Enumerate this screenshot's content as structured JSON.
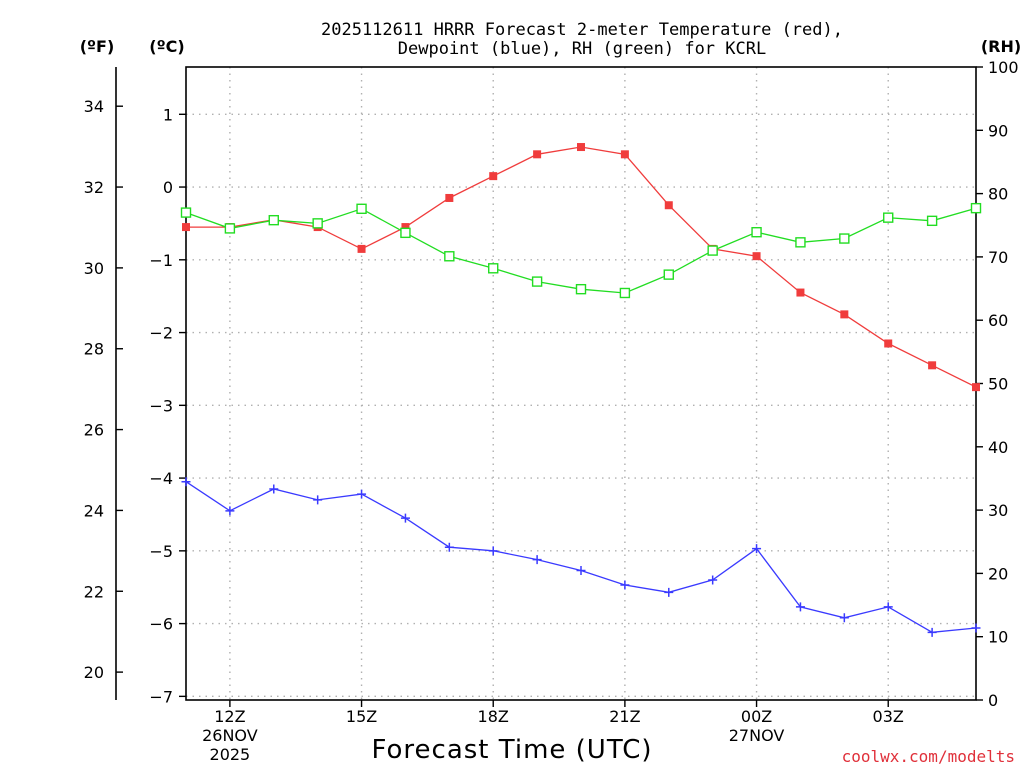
{
  "chart_data": {
    "type": "line",
    "title_line1": "2025112611 HRRR Forecast 2-meter Temperature (red),",
    "title_line2": "Dewpoint (blue), RH (green) for KCRL",
    "xlabel": "Forecast Time (UTC)",
    "credit": "coolwx.com/modelts",
    "units": {
      "fahrenheit": "(ºF)",
      "celsius": "(ºC)",
      "rh": "(RH)"
    },
    "x_hours": [
      11,
      12,
      13,
      14,
      15,
      16,
      17,
      18,
      19,
      20,
      21,
      22,
      23,
      24,
      25,
      26,
      27,
      28,
      29
    ],
    "xlim": [
      11,
      29
    ],
    "x_ticks": [
      {
        "hour": 12,
        "line1": "12Z",
        "line2": "26NOV",
        "line3": "2025"
      },
      {
        "hour": 15,
        "line1": "15Z",
        "line2": "",
        "line3": ""
      },
      {
        "hour": 18,
        "line1": "18Z",
        "line2": "",
        "line3": ""
      },
      {
        "hour": 21,
        "line1": "21Z",
        "line2": "",
        "line3": ""
      },
      {
        "hour": 24,
        "line1": "00Z",
        "line2": "27NOV",
        "line3": ""
      },
      {
        "hour": 27,
        "line1": "03Z",
        "line2": "",
        "line3": ""
      }
    ],
    "celsius_axis": {
      "range": [
        -7.05,
        1.65
      ],
      "ticks": [
        "1",
        "0",
        "−1",
        "−2",
        "−3",
        "−4",
        "−5",
        "−6",
        "−7"
      ]
    },
    "fahrenheit_axis": {
      "ticks": [
        "34",
        "32",
        "30",
        "28",
        "26",
        "24",
        "22",
        "20"
      ]
    },
    "rh_axis": {
      "range": [
        0,
        100
      ],
      "ticks": [
        "100",
        "90",
        "80",
        "70",
        "60",
        "50",
        "40",
        "30",
        "20",
        "10",
        "0"
      ]
    },
    "series": [
      {
        "name": "Temperature",
        "unit": "C",
        "color": "#f03c3c",
        "marker": "filled-square",
        "values": [
          -0.55,
          -0.55,
          -0.45,
          -0.55,
          -0.85,
          -0.55,
          -0.15,
          0.15,
          0.45,
          0.55,
          0.45,
          -0.25,
          -0.85,
          -0.95,
          -1.45,
          -1.75,
          -2.15,
          -2.45,
          -2.75
        ]
      },
      {
        "name": "Dewpoint",
        "unit": "C",
        "color": "#3a3aff",
        "marker": "plus",
        "values": [
          -4.05,
          -4.45,
          -4.15,
          -4.3,
          -4.22,
          -4.55,
          -4.95,
          -5.0,
          -5.12,
          -5.27,
          -5.47,
          -5.57,
          -5.4,
          -4.97,
          -5.77,
          -5.92,
          -5.77,
          -6.12,
          -6.06
        ]
      },
      {
        "name": "RH",
        "unit": "%",
        "color": "#22dd22",
        "marker": "open-square",
        "values": [
          77,
          74.5,
          75.8,
          75.3,
          77.6,
          73.8,
          70.1,
          68.2,
          66.1,
          64.9,
          64.3,
          67.2,
          71,
          73.9,
          72.3,
          72.9,
          76.2,
          75.7,
          77.7
        ]
      }
    ]
  }
}
